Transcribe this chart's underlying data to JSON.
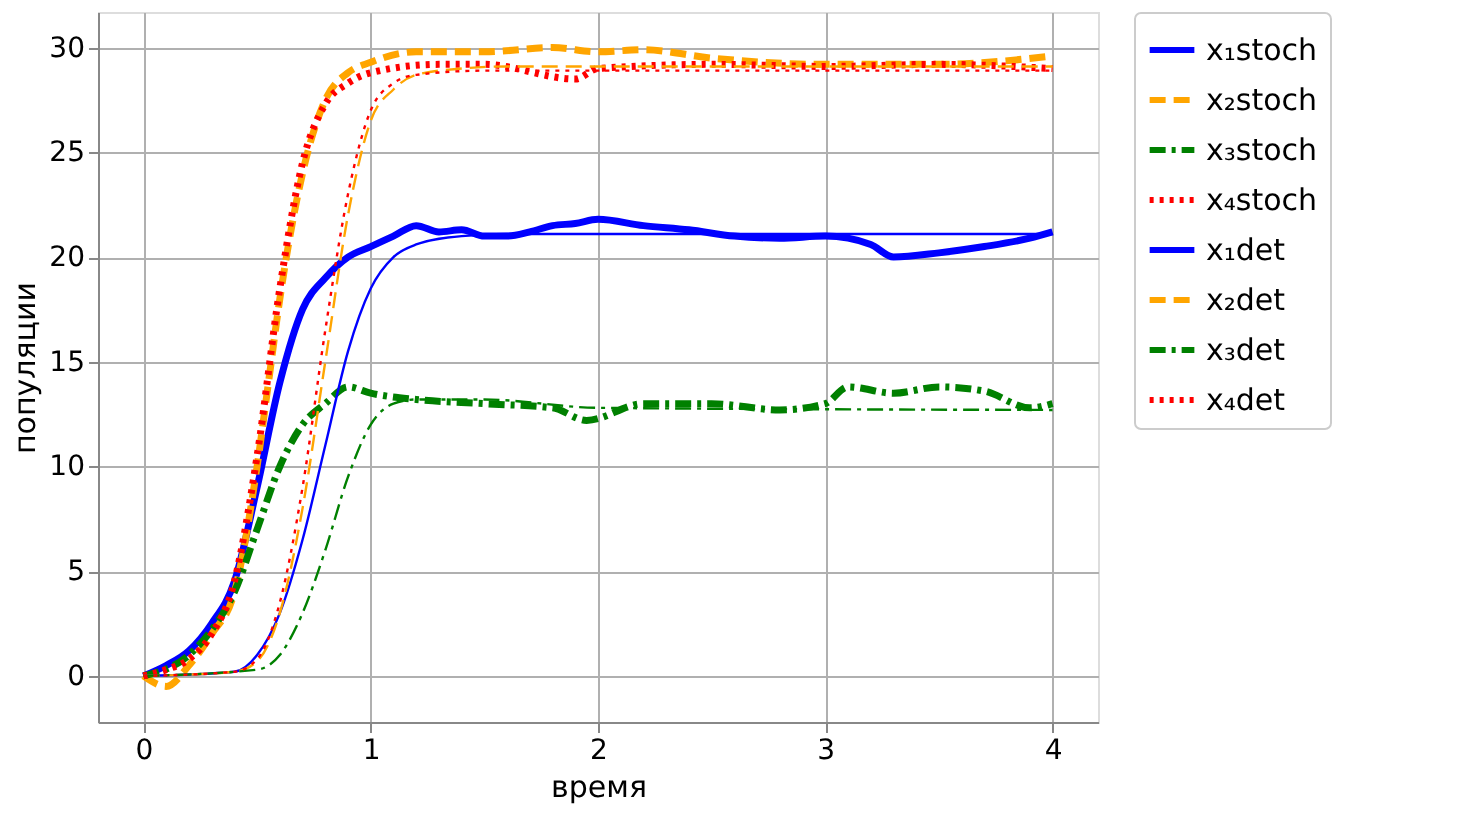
{
  "chart_data": {
    "type": "line",
    "xlabel": "время",
    "ylabel": "популяции",
    "xlim": [
      -0.2,
      4.2
    ],
    "ylim": [
      -2.2,
      31.7
    ],
    "xticks": [
      0,
      1,
      2,
      3,
      4
    ],
    "yticks": [
      0,
      5,
      10,
      15,
      20,
      25,
      30
    ],
    "grid": true,
    "legend": "right",
    "series": [
      {
        "name": "x₁stoch",
        "color": "#0000ff",
        "line_style": "solid",
        "x": [
          0,
          0.1,
          0.2,
          0.3,
          0.4,
          0.5,
          0.6,
          0.7,
          0.8,
          0.9,
          1.0,
          1.1,
          1.2,
          1.3,
          1.4,
          1.5,
          1.6,
          1.7,
          1.8,
          1.9,
          2.0,
          2.2,
          2.4,
          2.6,
          2.8,
          3.0,
          3.2,
          3.3,
          3.5,
          3.7,
          3.9,
          4.0
        ],
        "values": [
          0,
          0.5,
          1.2,
          2.5,
          4.5,
          9,
          14,
          17.5,
          19,
          20,
          20.5,
          21,
          21.5,
          21.2,
          21.3,
          21,
          21,
          21.2,
          21.5,
          21.6,
          21.8,
          21.5,
          21.3,
          21,
          20.9,
          21,
          20.6,
          20,
          20.2,
          20.5,
          20.9,
          21.2
        ]
      },
      {
        "name": "x₂stoch",
        "color": "#ffa500",
        "line_style": "dashed",
        "x": [
          0,
          0.1,
          0.2,
          0.3,
          0.4,
          0.5,
          0.55,
          0.6,
          0.7,
          0.8,
          0.9,
          1.0,
          1.2,
          1.5,
          1.8,
          2.0,
          2.2,
          2.5,
          3.0,
          3.5,
          4.0
        ],
        "values": [
          0,
          -0.5,
          0.5,
          2,
          4,
          10,
          14,
          18,
          24,
          27.5,
          28.8,
          29.3,
          29.8,
          29.8,
          30,
          29.8,
          29.9,
          29.5,
          29.2,
          29.2,
          29.6
        ]
      },
      {
        "name": "x₃stoch",
        "color": "#008000",
        "line_style": "dashdot",
        "x": [
          0,
          0.2,
          0.3,
          0.4,
          0.5,
          0.6,
          0.7,
          0.8,
          0.9,
          1.0,
          1.2,
          1.5,
          1.8,
          1.95,
          2.2,
          2.5,
          2.8,
          3.0,
          3.1,
          3.3,
          3.5,
          3.7,
          3.9,
          4.0
        ],
        "values": [
          0,
          1,
          2.2,
          4,
          7,
          10,
          12,
          13,
          13.8,
          13.5,
          13.2,
          13,
          12.8,
          12.2,
          13,
          13,
          12.7,
          13,
          13.8,
          13.5,
          13.8,
          13.6,
          12.8,
          13
        ]
      },
      {
        "name": "x₄stoch",
        "color": "#ff0000",
        "line_style": "dotted",
        "x": [
          0,
          0.1,
          0.2,
          0.3,
          0.4,
          0.5,
          0.6,
          0.7,
          0.8,
          0.9,
          1.0,
          1.3,
          1.5,
          1.9,
          2.0,
          2.5,
          3.0,
          3.5,
          4.0
        ],
        "values": [
          0,
          0.3,
          0.8,
          2,
          4.5,
          10.5,
          18.5,
          24.5,
          27.3,
          28.3,
          28.8,
          29.2,
          29.2,
          28.5,
          29,
          29.2,
          29.1,
          29.2,
          29
        ]
      },
      {
        "name": "x₁det",
        "color": "#0000ff",
        "line_style": "solid",
        "x": [
          0,
          0.4,
          0.5,
          0.6,
          0.7,
          0.8,
          0.9,
          1.0,
          1.1,
          1.2,
          1.4,
          1.6,
          4.0
        ],
        "values": [
          0,
          0.2,
          1,
          3,
          6.5,
          11,
          15.5,
          18.5,
          20,
          20.6,
          21,
          21.1,
          21.1
        ]
      },
      {
        "name": "x₂det",
        "color": "#ffa500",
        "line_style": "dashed",
        "x": [
          0,
          0.4,
          0.5,
          0.6,
          0.7,
          0.8,
          0.9,
          1.0,
          1.1,
          1.2,
          1.4,
          1.6,
          4.0
        ],
        "values": [
          0,
          0.2,
          0.7,
          3,
          8,
          15,
          22,
          26.5,
          28,
          28.7,
          29,
          29.1,
          29.1
        ]
      },
      {
        "name": "x₃det",
        "color": "#008000",
        "line_style": "dashdot",
        "x": [
          0,
          0.5,
          0.6,
          0.7,
          0.8,
          0.9,
          1.0,
          1.1,
          1.2,
          1.5,
          2.0,
          4.0
        ],
        "values": [
          0,
          0.3,
          1,
          3,
          6,
          9.5,
          12,
          13,
          13.2,
          13.2,
          12.8,
          12.7
        ]
      },
      {
        "name": "x₄det",
        "color": "#ff0000",
        "line_style": "dotted",
        "x": [
          0,
          0.4,
          0.5,
          0.6,
          0.7,
          0.8,
          0.9,
          1.0,
          1.1,
          1.2,
          1.5,
          4.0
        ],
        "values": [
          0,
          0.2,
          0.8,
          3.5,
          9,
          16.5,
          23,
          27,
          28.3,
          28.7,
          28.9,
          28.9
        ]
      }
    ]
  }
}
